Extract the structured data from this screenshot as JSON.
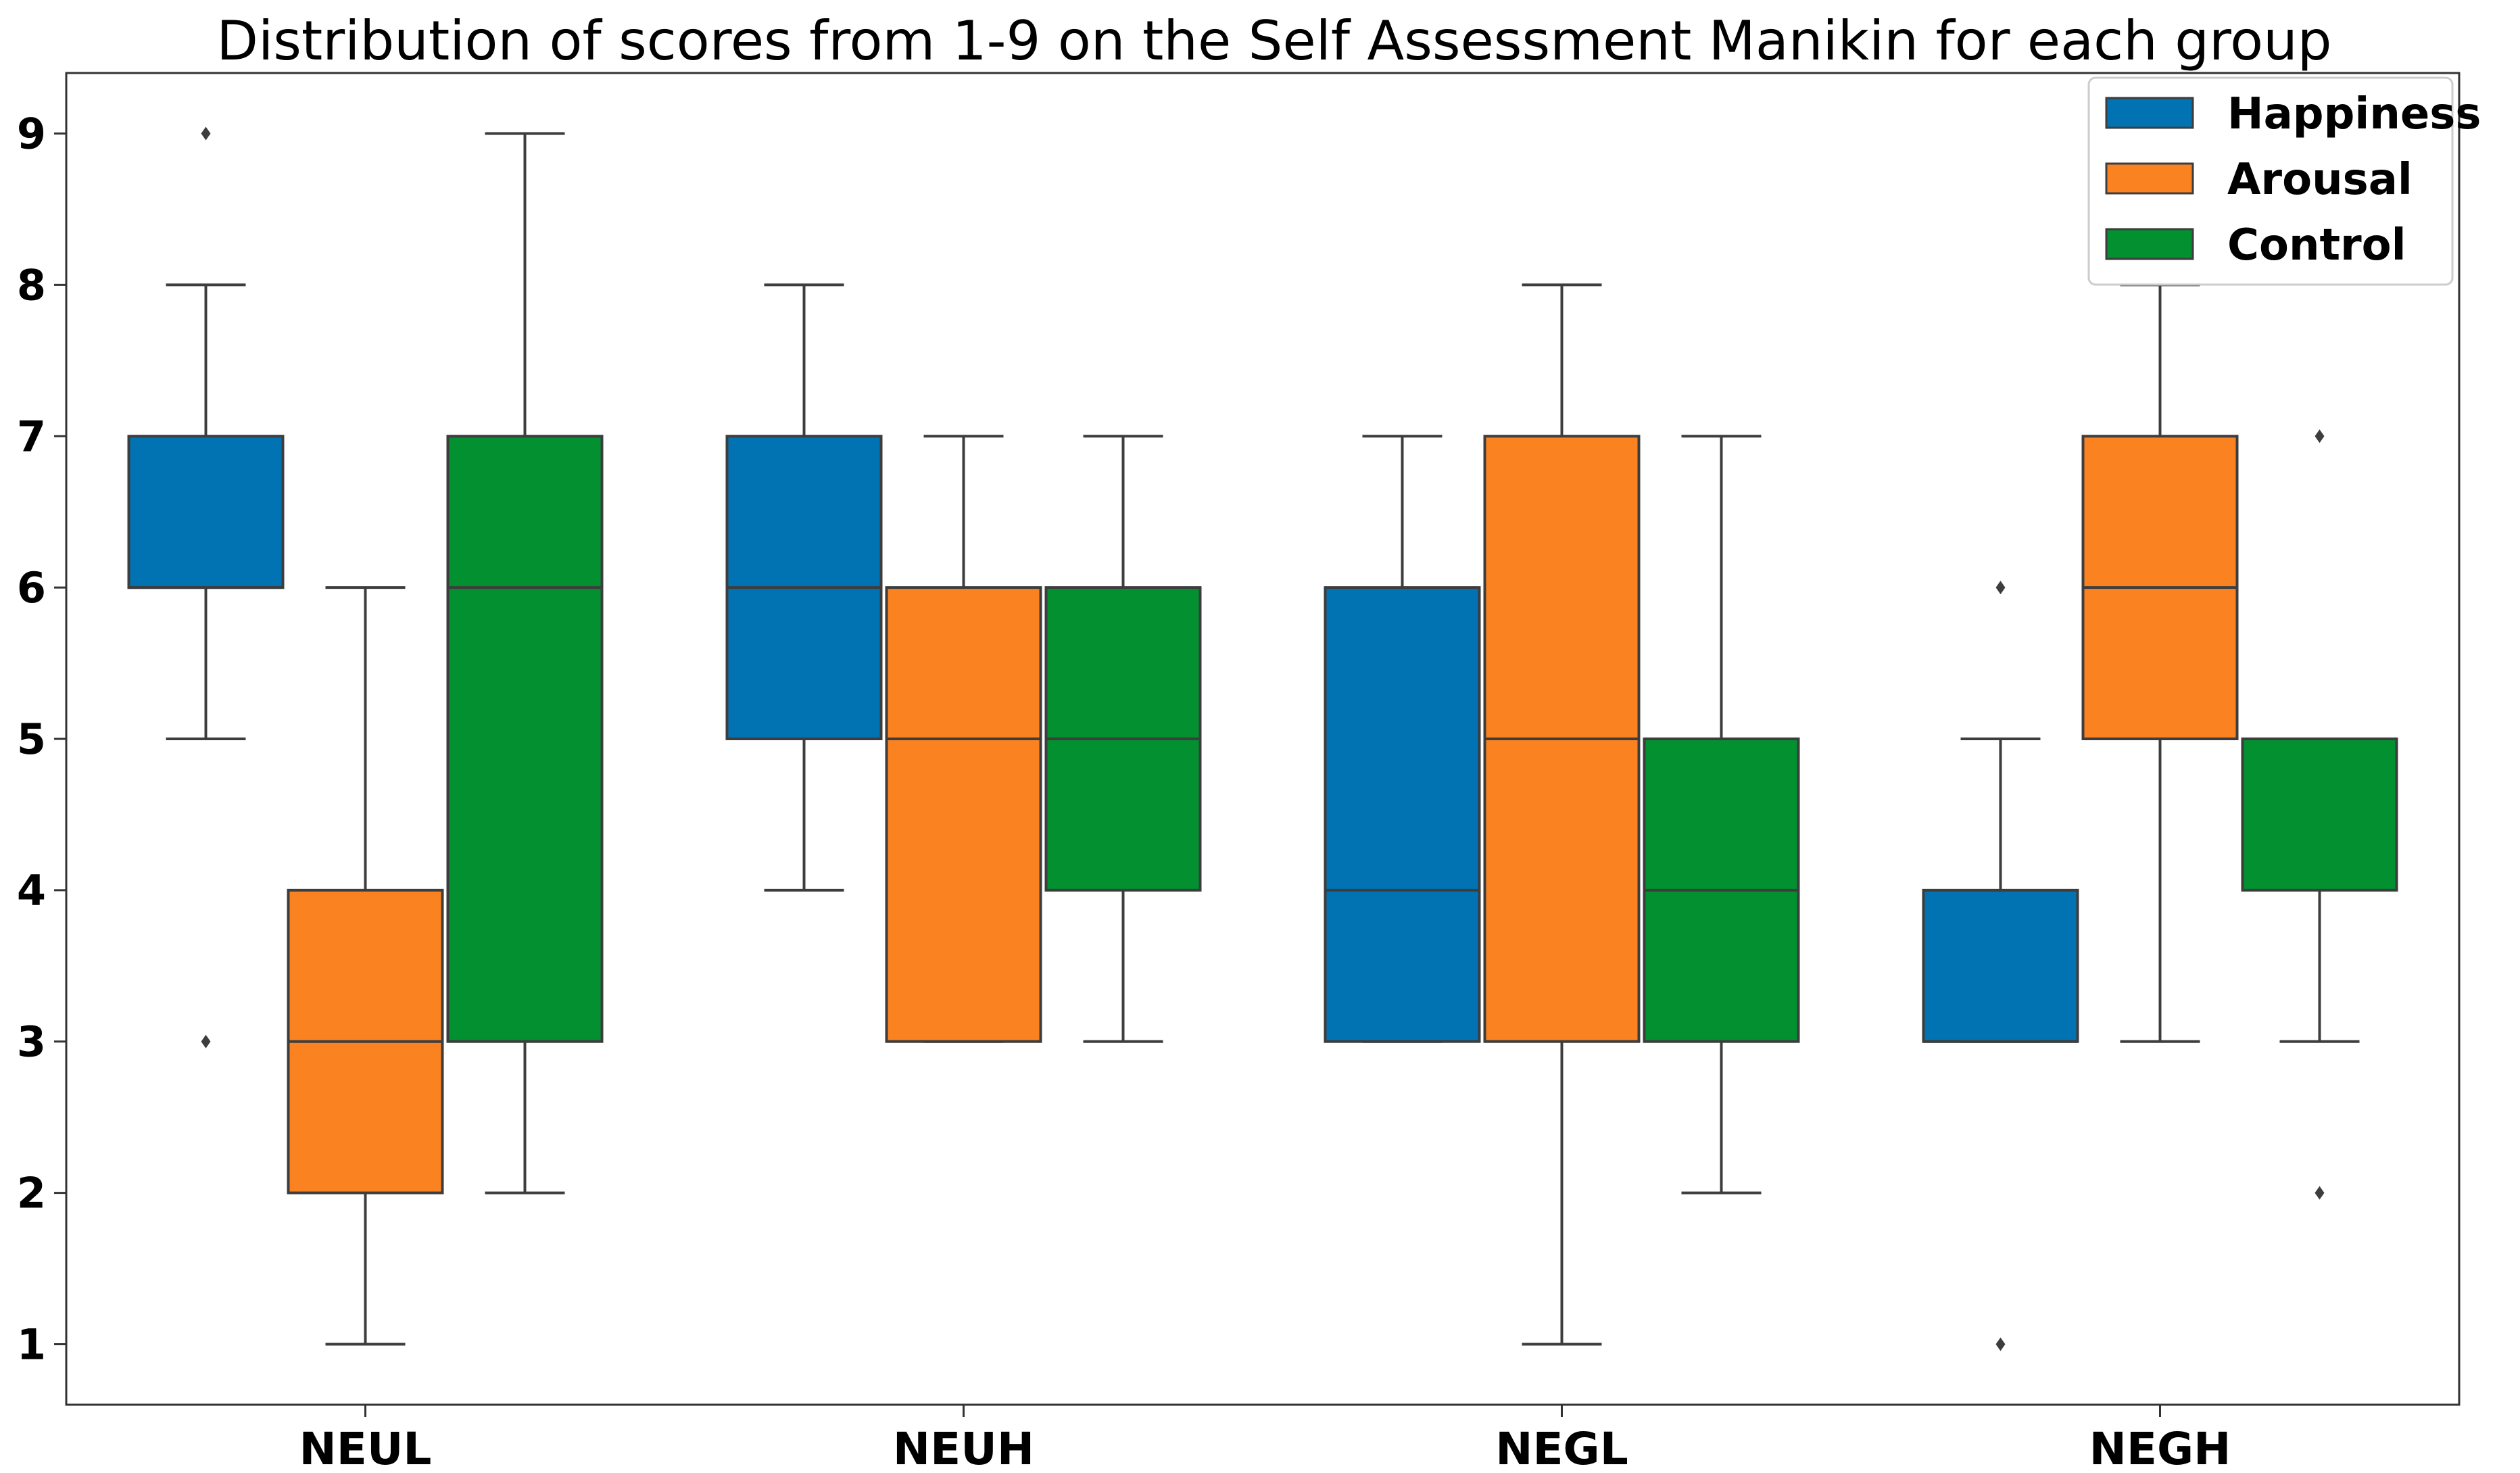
{
  "chart_data": {
    "type": "boxplot",
    "title": "Distribution of scores from 1-9 on the Self Assessment Manikin for each group",
    "xlabel": "",
    "ylabel": "",
    "ylim": [
      0.6,
      9.4
    ],
    "yticks": [
      1,
      2,
      3,
      4,
      5,
      6,
      7,
      8,
      9
    ],
    "categories": [
      "NEUL",
      "NEUH",
      "NEGL",
      "NEGH"
    ],
    "legend_position": "top-right",
    "series": [
      {
        "name": "Happiness",
        "color": "#0173b2",
        "boxes": [
          {
            "whisker_low": 5,
            "q1": 6,
            "median": 6,
            "q3": 7,
            "whisker_high": 8,
            "outliers": [
              3,
              9
            ]
          },
          {
            "whisker_low": 4,
            "q1": 5,
            "median": 6,
            "q3": 7,
            "whisker_high": 8,
            "outliers": []
          },
          {
            "whisker_low": 3,
            "q1": 3,
            "median": 4,
            "q3": 6,
            "whisker_high": 7,
            "outliers": []
          },
          {
            "whisker_low": 3,
            "q1": 3,
            "median": 3,
            "q3": 4,
            "whisker_high": 5,
            "outliers": [
              1,
              6
            ]
          }
        ]
      },
      {
        "name": "Arousal",
        "color": "#fb8221",
        "boxes": [
          {
            "whisker_low": 1,
            "q1": 2,
            "median": 3,
            "q3": 4,
            "whisker_high": 6,
            "outliers": []
          },
          {
            "whisker_low": 3,
            "q1": 3,
            "median": 5,
            "q3": 6,
            "whisker_high": 7,
            "outliers": []
          },
          {
            "whisker_low": 1,
            "q1": 3,
            "median": 5,
            "q3": 7,
            "whisker_high": 8,
            "outliers": []
          },
          {
            "whisker_low": 3,
            "q1": 5,
            "median": 6,
            "q3": 7,
            "whisker_high": 8,
            "outliers": []
          }
        ]
      },
      {
        "name": "Control",
        "color": "#029031",
        "boxes": [
          {
            "whisker_low": 2,
            "q1": 3,
            "median": 6,
            "q3": 7,
            "whisker_high": 9,
            "outliers": []
          },
          {
            "whisker_low": 3,
            "q1": 4,
            "median": 5,
            "q3": 6,
            "whisker_high": 7,
            "outliers": []
          },
          {
            "whisker_low": 2,
            "q1": 3,
            "median": 4,
            "q3": 5,
            "whisker_high": 7,
            "outliers": []
          },
          {
            "whisker_low": 3,
            "q1": 4,
            "median": 5,
            "q3": 5,
            "whisker_high": 5,
            "outliers": [
              2,
              7
            ]
          }
        ]
      }
    ]
  }
}
